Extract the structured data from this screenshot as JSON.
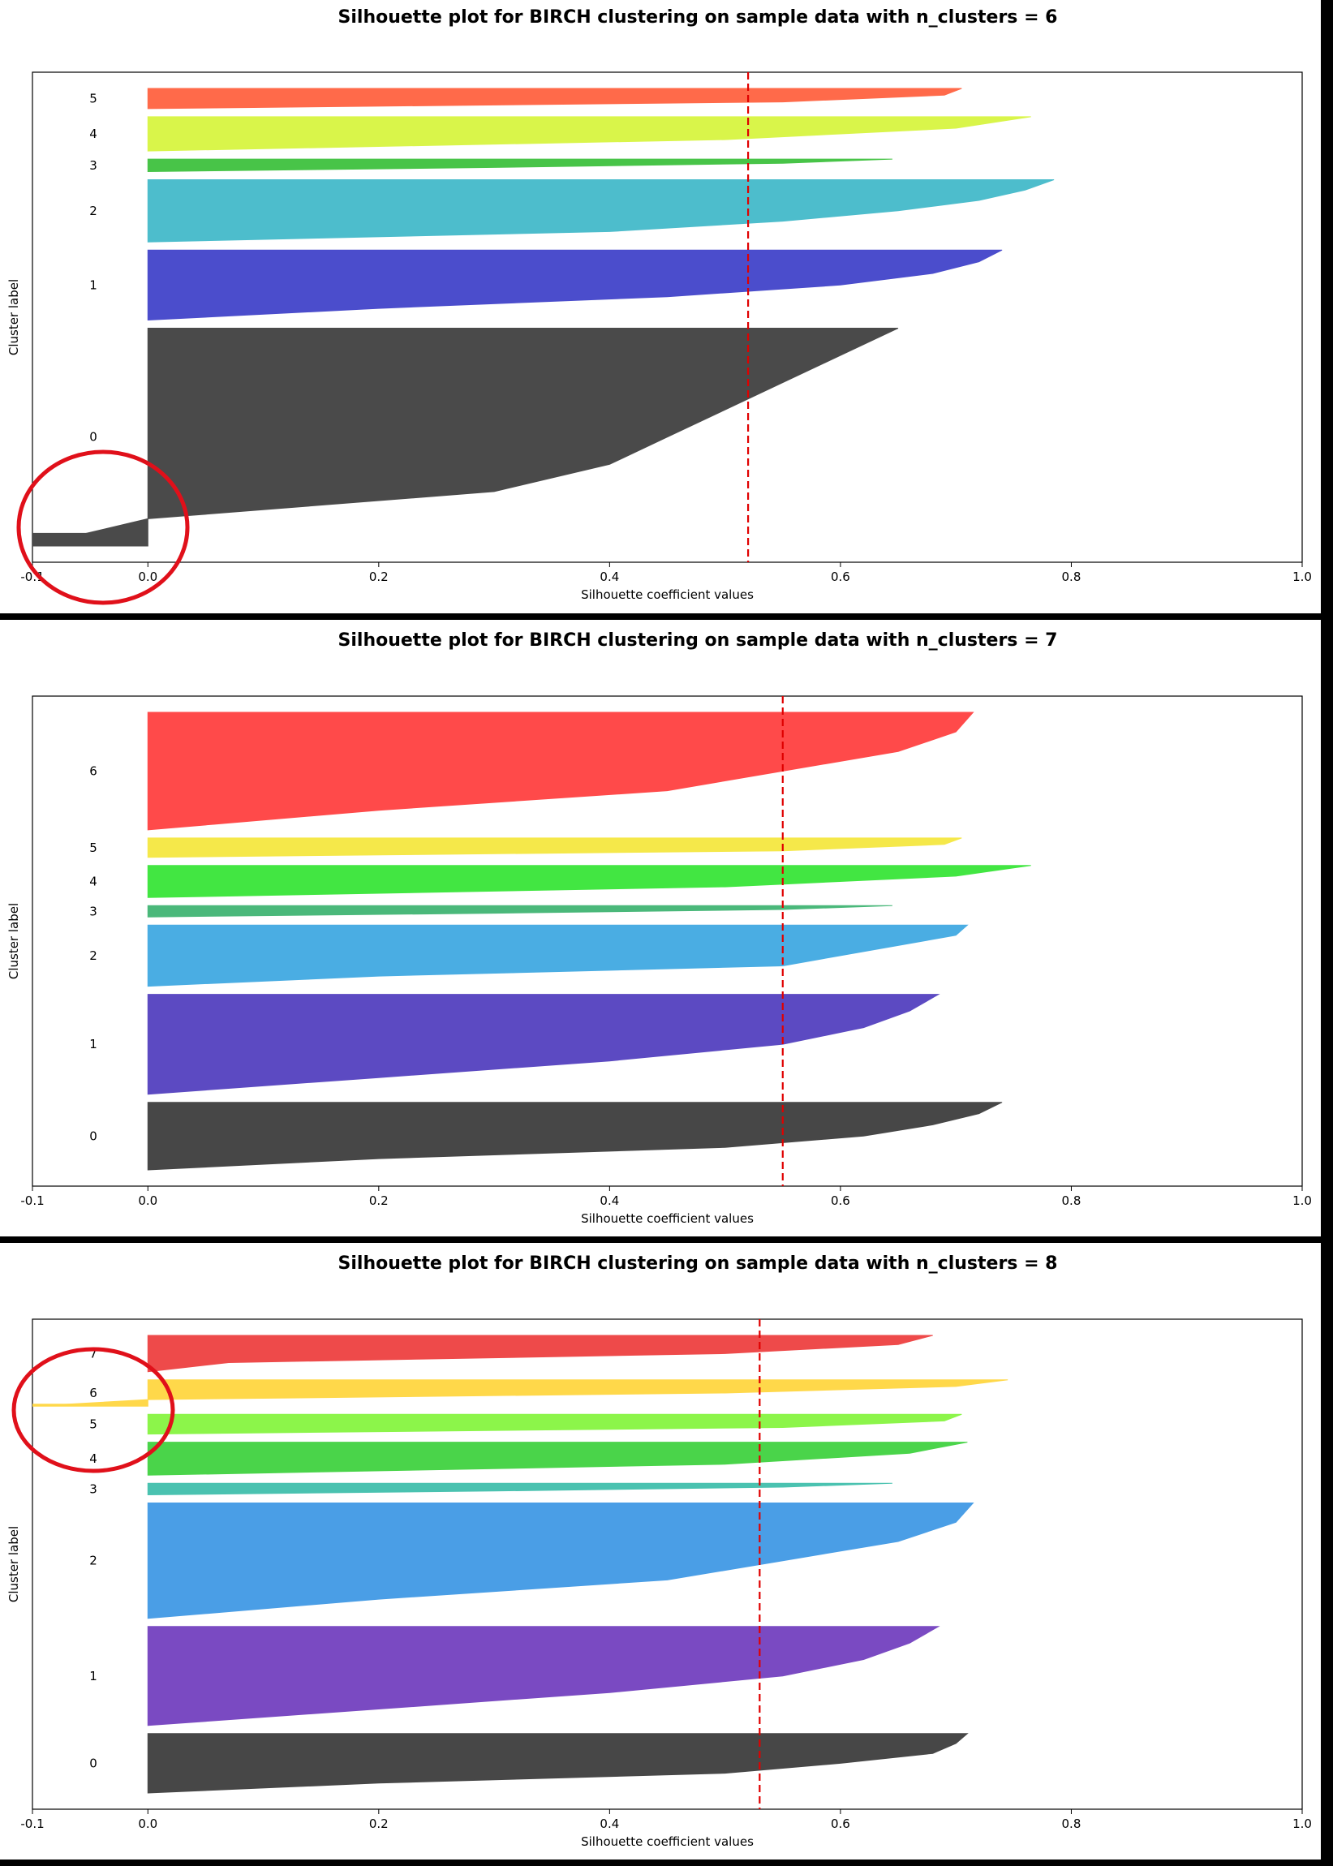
{
  "chart_data": [
    {
      "type": "area",
      "title": "Silhouette plot for BIRCH clustering on sample data with n_clusters = 6",
      "xlabel": "Silhouette coefficient values",
      "ylabel": "Cluster label",
      "xlim": [
        -0.1,
        1.0
      ],
      "xticks": [
        "-0.1",
        "0.0",
        "0.2",
        "0.4",
        "0.6",
        "0.8",
        "1.0"
      ],
      "average_silhouette": 0.52,
      "annotation": "red circle around negative silhouette values of cluster 0",
      "clusters": [
        {
          "label": "0",
          "size": 140,
          "color": "#4a4a4a",
          "x": [
            -0.1,
            0.0,
            0.3,
            0.4,
            0.45,
            0.5,
            0.55,
            0.6,
            0.65
          ]
        },
        {
          "label": "1",
          "size": 45,
          "color": "#4b4dcc",
          "x": [
            0.0,
            0.2,
            0.45,
            0.6,
            0.68,
            0.72,
            0.74
          ]
        },
        {
          "label": "2",
          "size": 40,
          "color": "#4dbdcc",
          "x": [
            0.0,
            0.4,
            0.55,
            0.65,
            0.72,
            0.76,
            0.785
          ]
        },
        {
          "label": "3",
          "size": 8,
          "color": "#48c448",
          "x": [
            0.0,
            0.3,
            0.55,
            0.645
          ]
        },
        {
          "label": "4",
          "size": 22,
          "color": "#d9f54a",
          "x": [
            0.0,
            0.5,
            0.7,
            0.765
          ]
        },
        {
          "label": "5",
          "size": 13,
          "color": "#ff6a4a",
          "x": [
            0.0,
            0.55,
            0.69,
            0.705
          ]
        }
      ]
    },
    {
      "type": "area",
      "title": "Silhouette plot for BIRCH clustering on sample data with n_clusters = 7",
      "xlabel": "Silhouette coefficient values",
      "ylabel": "Cluster label",
      "xlim": [
        -0.1,
        1.0
      ],
      "xticks": [
        "-0.1",
        "0.0",
        "0.2",
        "0.4",
        "0.6",
        "0.8",
        "1.0"
      ],
      "average_silhouette": 0.55,
      "clusters": [
        {
          "label": "0",
          "size": 42,
          "color": "#474747",
          "x": [
            0.0,
            0.2,
            0.5,
            0.62,
            0.68,
            0.72,
            0.74
          ]
        },
        {
          "label": "1",
          "size": 62,
          "color": "#5c4ac2",
          "x": [
            0.0,
            0.2,
            0.4,
            0.55,
            0.62,
            0.66,
            0.685
          ]
        },
        {
          "label": "2",
          "size": 38,
          "color": "#4aade3",
          "x": [
            0.0,
            0.2,
            0.55,
            0.6,
            0.65,
            0.7,
            0.71
          ]
        },
        {
          "label": "3",
          "size": 7,
          "color": "#4ab87a",
          "x": [
            0.0,
            0.3,
            0.55,
            0.645
          ]
        },
        {
          "label": "4",
          "size": 20,
          "color": "#42e642",
          "x": [
            0.0,
            0.5,
            0.7,
            0.765
          ]
        },
        {
          "label": "5",
          "size": 12,
          "color": "#f5e84a",
          "x": [
            0.0,
            0.55,
            0.69,
            0.705
          ]
        },
        {
          "label": "6",
          "size": 73,
          "color": "#ff4a4a",
          "x": [
            0.0,
            0.2,
            0.45,
            0.55,
            0.65,
            0.7,
            0.715
          ]
        }
      ]
    },
    {
      "type": "area",
      "title": "Silhouette plot for BIRCH clustering on sample data with n_clusters = 8",
      "xlabel": "Silhouette coefficient values",
      "ylabel": "Cluster label",
      "xlim": [
        -0.1,
        1.0
      ],
      "xticks": [
        "-0.1",
        "0.0",
        "0.2",
        "0.4",
        "0.6",
        "0.8",
        "1.0"
      ],
      "average_silhouette": 0.53,
      "annotation": "red circle around cluster labels 5, 6, 7 and negative silhouette values of cluster 6",
      "clusters": [
        {
          "label": "0",
          "size": 36,
          "color": "#474747",
          "x": [
            0.0,
            0.2,
            0.5,
            0.6,
            0.68,
            0.7,
            0.71
          ]
        },
        {
          "label": "1",
          "size": 60,
          "color": "#7a4ac2",
          "x": [
            0.0,
            0.2,
            0.4,
            0.55,
            0.62,
            0.66,
            0.685
          ]
        },
        {
          "label": "2",
          "size": 70,
          "color": "#4a9ee6",
          "x": [
            0.0,
            0.2,
            0.45,
            0.55,
            0.65,
            0.7,
            0.715
          ]
        },
        {
          "label": "3",
          "size": 7,
          "color": "#4ac2b0",
          "x": [
            0.0,
            0.3,
            0.55,
            0.645
          ]
        },
        {
          "label": "4",
          "size": 20,
          "color": "#4ad44a",
          "x": [
            0.0,
            0.5,
            0.66,
            0.71
          ]
        },
        {
          "label": "5",
          "size": 12,
          "color": "#8cf54a",
          "x": [
            0.0,
            0.55,
            0.69,
            0.705
          ]
        },
        {
          "label": "6",
          "size": 16,
          "color": "#ffd84a",
          "x": [
            -0.1,
            0.0,
            0.5,
            0.7,
            0.745
          ]
        },
        {
          "label": "7",
          "size": 22,
          "color": "#ee4a4a",
          "x": [
            0.0,
            0.07,
            0.5,
            0.65,
            0.68
          ]
        }
      ]
    }
  ]
}
